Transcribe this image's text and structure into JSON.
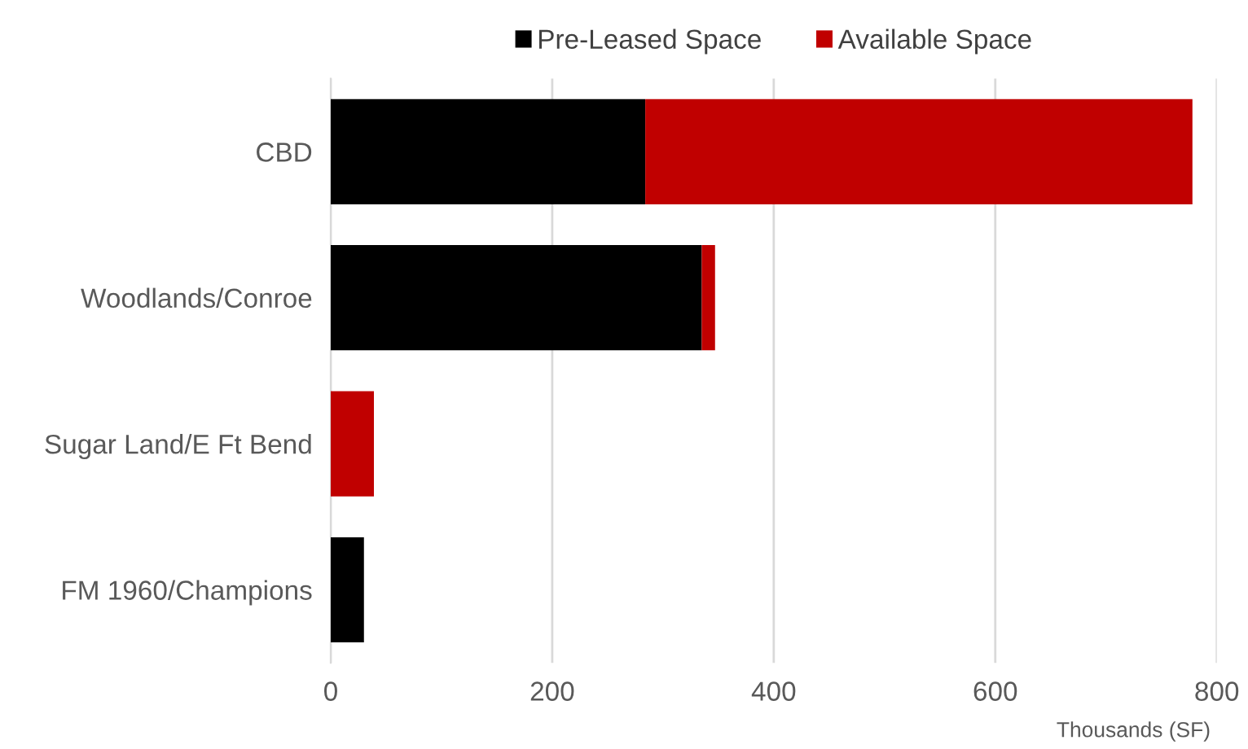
{
  "chart_data": {
    "type": "bar",
    "orientation": "horizontal",
    "stacked": true,
    "categories": [
      "CBD",
      "Woodlands/Conroe",
      "Sugar Land/E Ft Bend",
      "FM 1960/Champions"
    ],
    "series": [
      {
        "name": "Pre-Leased Space",
        "color": "#000000",
        "values": [
          284,
          335,
          0,
          30
        ]
      },
      {
        "name": "Available Space",
        "color": "#c00000",
        "values": [
          494,
          12,
          39,
          0
        ]
      }
    ],
    "xlim": [
      0,
      800
    ],
    "xticks": [
      0,
      200,
      400,
      600,
      800
    ],
    "xlabel": "Thousands (SF)",
    "grid": "x",
    "legend": "top"
  }
}
